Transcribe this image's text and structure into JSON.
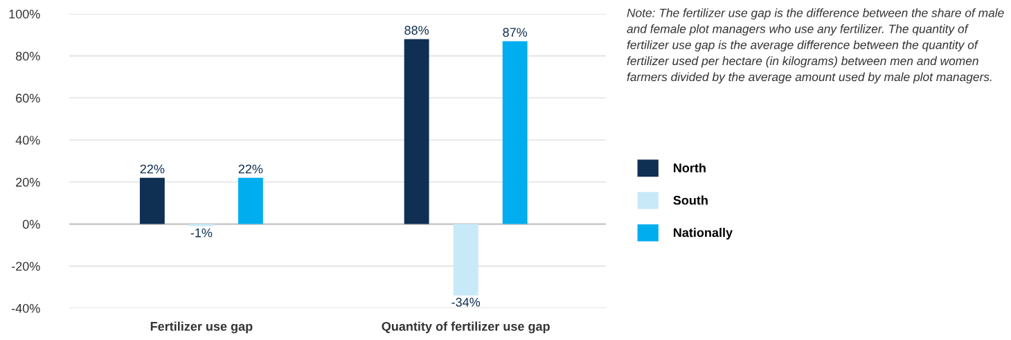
{
  "chart_data": {
    "type": "bar",
    "categories": [
      "Fertilizer use gap",
      "Quantity of fertilizer use gap"
    ],
    "series": [
      {
        "name": "North",
        "color": "#0f2f53",
        "values": [
          22,
          88
        ]
      },
      {
        "name": "South",
        "color": "#c8e9f8",
        "values": [
          -1,
          -34
        ]
      },
      {
        "name": "Nationally",
        "color": "#00adef",
        "values": [
          22,
          87
        ]
      }
    ],
    "ylim": [
      -40,
      100
    ],
    "yticks": [
      {
        "value": -40,
        "label": "-40%"
      },
      {
        "value": -20,
        "label": "-20%"
      },
      {
        "value": 0,
        "label": "0%"
      },
      {
        "value": 20,
        "label": "20%"
      },
      {
        "value": 40,
        "label": "40%"
      },
      {
        "value": 60,
        "label": "60%"
      },
      {
        "value": 80,
        "label": "80%"
      },
      {
        "value": 100,
        "label": "100%"
      }
    ],
    "value_labels": [
      [
        "22%",
        "88%"
      ],
      [
        "-1%",
        "-34%"
      ],
      [
        "22%",
        "87%"
      ]
    ],
    "grid": "y",
    "legend": "right",
    "annotations": [
      "Note: The fertilizer use gap is the difference between the share of male and female plot managers who use any fertilizer. The quantity of fertilizer use gap is the average difference between the quantity of fertilizer used per hectare (in kilograms) between men and women farmers divided by the average amount used by male plot managers."
    ]
  }
}
